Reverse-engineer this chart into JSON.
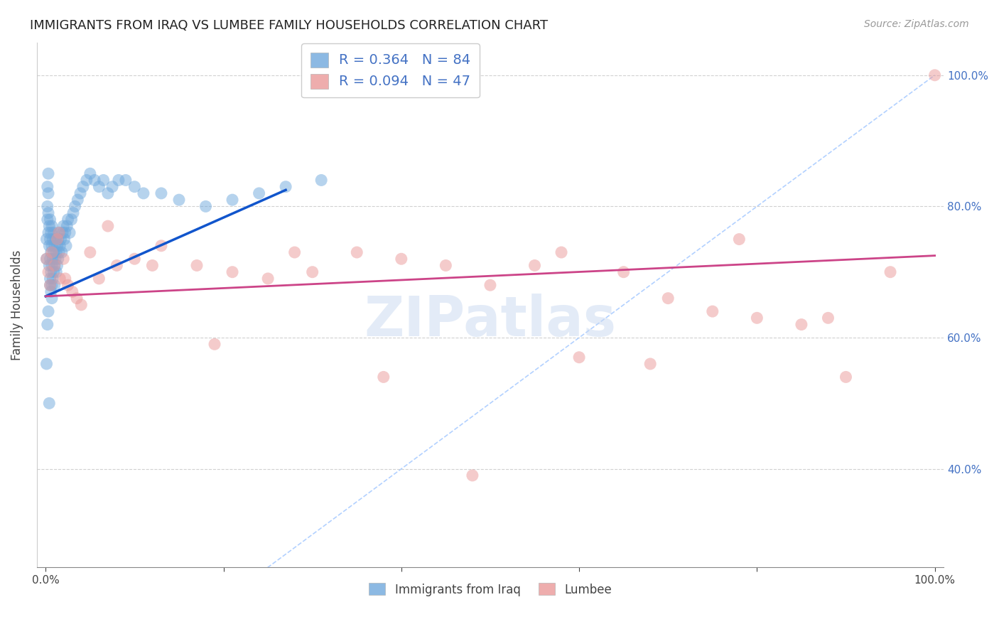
{
  "title": "IMMIGRANTS FROM IRAQ VS LUMBEE FAMILY HOUSEHOLDS CORRELATION CHART",
  "source": "Source: ZipAtlas.com",
  "ylabel": "Family Households",
  "blue_color": "#6fa8dc",
  "pink_color": "#ea9999",
  "blue_line_color": "#1155cc",
  "pink_line_color": "#cc4488",
  "diagonal_color": "#aaccff",
  "watermark": "ZIPatlas",
  "iraq_scatter_x": [
    0.001,
    0.001,
    0.002,
    0.002,
    0.002,
    0.003,
    0.003,
    0.003,
    0.003,
    0.004,
    0.004,
    0.004,
    0.005,
    0.005,
    0.005,
    0.005,
    0.006,
    0.006,
    0.006,
    0.007,
    0.007,
    0.007,
    0.007,
    0.008,
    0.008,
    0.008,
    0.009,
    0.009,
    0.009,
    0.01,
    0.01,
    0.01,
    0.011,
    0.011,
    0.012,
    0.012,
    0.013,
    0.013,
    0.014,
    0.014,
    0.015,
    0.015,
    0.016,
    0.017,
    0.018,
    0.019,
    0.02,
    0.021,
    0.022,
    0.023,
    0.024,
    0.025,
    0.027,
    0.029,
    0.031,
    0.033,
    0.036,
    0.039,
    0.042,
    0.046,
    0.05,
    0.055,
    0.06,
    0.065,
    0.07,
    0.075,
    0.082,
    0.09,
    0.1,
    0.11,
    0.13,
    0.15,
    0.18,
    0.21,
    0.24,
    0.27,
    0.31,
    0.001,
    0.002,
    0.003,
    0.004,
    0.005,
    0.006,
    0.007
  ],
  "iraq_scatter_y": [
    0.72,
    0.75,
    0.78,
    0.8,
    0.83,
    0.76,
    0.79,
    0.82,
    0.85,
    0.71,
    0.74,
    0.77,
    0.69,
    0.72,
    0.75,
    0.78,
    0.7,
    0.73,
    0.76,
    0.68,
    0.71,
    0.74,
    0.77,
    0.69,
    0.72,
    0.75,
    0.7,
    0.73,
    0.76,
    0.68,
    0.71,
    0.74,
    0.72,
    0.75,
    0.7,
    0.73,
    0.71,
    0.74,
    0.72,
    0.75,
    0.73,
    0.76,
    0.74,
    0.75,
    0.73,
    0.76,
    0.77,
    0.75,
    0.76,
    0.74,
    0.77,
    0.78,
    0.76,
    0.78,
    0.79,
    0.8,
    0.81,
    0.82,
    0.83,
    0.84,
    0.85,
    0.84,
    0.83,
    0.84,
    0.82,
    0.83,
    0.84,
    0.84,
    0.83,
    0.82,
    0.82,
    0.81,
    0.8,
    0.81,
    0.82,
    0.83,
    0.84,
    0.56,
    0.62,
    0.64,
    0.5,
    0.68,
    0.67,
    0.66
  ],
  "lumbee_scatter_x": [
    0.001,
    0.003,
    0.005,
    0.007,
    0.01,
    0.013,
    0.016,
    0.02,
    0.025,
    0.03,
    0.035,
    0.04,
    0.05,
    0.06,
    0.08,
    0.1,
    0.13,
    0.17,
    0.21,
    0.25,
    0.3,
    0.35,
    0.4,
    0.45,
    0.5,
    0.55,
    0.6,
    0.65,
    0.7,
    0.75,
    0.8,
    0.85,
    0.9,
    0.95,
    1.0,
    0.015,
    0.022,
    0.07,
    0.12,
    0.19,
    0.28,
    0.38,
    0.48,
    0.58,
    0.68,
    0.78,
    0.88
  ],
  "lumbee_scatter_y": [
    0.72,
    0.7,
    0.68,
    0.73,
    0.71,
    0.75,
    0.69,
    0.72,
    0.68,
    0.67,
    0.66,
    0.65,
    0.73,
    0.69,
    0.71,
    0.72,
    0.74,
    0.71,
    0.7,
    0.69,
    0.7,
    0.73,
    0.72,
    0.71,
    0.68,
    0.71,
    0.57,
    0.7,
    0.66,
    0.64,
    0.63,
    0.62,
    0.54,
    0.7,
    1.0,
    0.76,
    0.69,
    0.77,
    0.71,
    0.59,
    0.73,
    0.54,
    0.39,
    0.73,
    0.56,
    0.75,
    0.63
  ],
  "iraq_line_x0": 0.0,
  "iraq_line_x1": 0.27,
  "iraq_line_y0": 0.663,
  "iraq_line_y1": 0.825,
  "lumbee_line_x0": 0.0,
  "lumbee_line_x1": 1.0,
  "lumbee_line_y0": 0.663,
  "lumbee_line_y1": 0.725,
  "xmin": 0.0,
  "xmax": 1.0,
  "ymin": 0.25,
  "ymax": 1.05,
  "ytick_vals": [
    0.4,
    0.6,
    0.8,
    1.0
  ],
  "ytick_labels_right": [
    "40.0%",
    "60.0%",
    "80.0%",
    "100.0%"
  ],
  "xtick_vals": [
    0.0,
    0.2,
    0.4,
    0.6,
    0.8,
    1.0
  ],
  "xtick_labels": [
    "0.0%",
    "",
    "",
    "",
    "",
    "100.0%"
  ]
}
